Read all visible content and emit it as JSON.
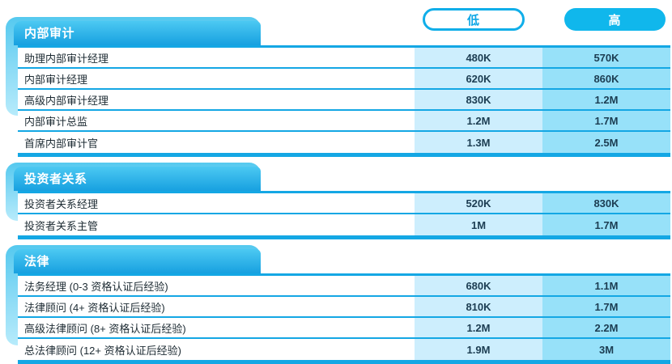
{
  "columns": {
    "low_label": "低",
    "high_label": "高"
  },
  "colors": {
    "accent_blue": "#14a7e4",
    "pill_fill": "#10b7ec",
    "header_gradient_top": "#4cc9f2",
    "header_gradient_bottom": "#17a0e0",
    "low_column_bg": "#cdeefd",
    "high_column_bg": "#97e1f9"
  },
  "sections": [
    {
      "title": "内部审计",
      "rows": [
        {
          "label": "助理内部审计经理",
          "low": "480K",
          "high": "570K"
        },
        {
          "label": "内部审计经理",
          "low": "620K",
          "high": "860K"
        },
        {
          "label": "高级内部审计经理",
          "low": "830K",
          "high": "1.2M"
        },
        {
          "label": "内部审计总监",
          "low": "1.2M",
          "high": "1.7M"
        },
        {
          "label": "首席内部审计官",
          "low": "1.3M",
          "high": "2.5M"
        }
      ]
    },
    {
      "title": "投资者关系",
      "rows": [
        {
          "label": "投资者关系经理",
          "low": "520K",
          "high": "830K"
        },
        {
          "label": "投资者关系主管",
          "low": "1M",
          "high": "1.7M"
        }
      ]
    },
    {
      "title": "法律",
      "rows": [
        {
          "label": "法务经理 (0-3 资格认证后经验)",
          "low": "680K",
          "high": "1.1M"
        },
        {
          "label": "法律顾问 (4+ 资格认证后经验)",
          "low": "810K",
          "high": "1.7M"
        },
        {
          "label": "高级法律顾问 (8+ 资格认证后经验)",
          "low": "1.2M",
          "high": "2.2M"
        },
        {
          "label": "总法律顾问 (12+ 资格认证后经验)",
          "low": "1.9M",
          "high": "3M"
        }
      ]
    }
  ]
}
